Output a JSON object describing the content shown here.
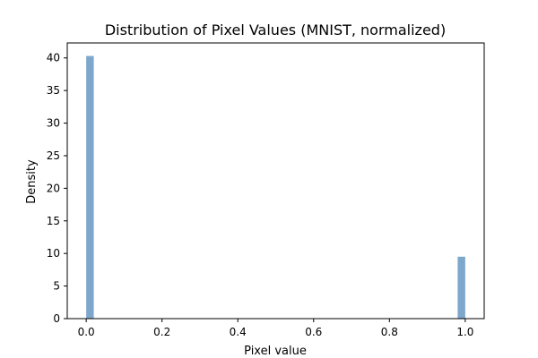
{
  "chart_data": {
    "type": "bar",
    "title": "Distribution of Pixel Values (MNIST, normalized)",
    "xlabel": "Pixel value",
    "ylabel": "Density",
    "xlim": [
      -0.05,
      1.05
    ],
    "ylim": [
      0,
      42.3
    ],
    "xticks": [
      0.0,
      0.2,
      0.4,
      0.6,
      0.8,
      1.0
    ],
    "xtick_labels": [
      "0.0",
      "0.2",
      "0.4",
      "0.6",
      "0.8",
      "1.0"
    ],
    "yticks": [
      0,
      5,
      10,
      15,
      20,
      25,
      30,
      35,
      40
    ],
    "ytick_labels": [
      "0",
      "5",
      "10",
      "15",
      "20",
      "25",
      "30",
      "35",
      "40"
    ],
    "bin_width": 0.02,
    "bars": [
      {
        "x_start": 0.0,
        "x_end": 0.02,
        "density": 40.3
      },
      {
        "x_start": 0.98,
        "x_end": 1.0,
        "density": 9.5
      }
    ],
    "bar_color": "#7da7cb",
    "grid": false,
    "legend": "none"
  }
}
